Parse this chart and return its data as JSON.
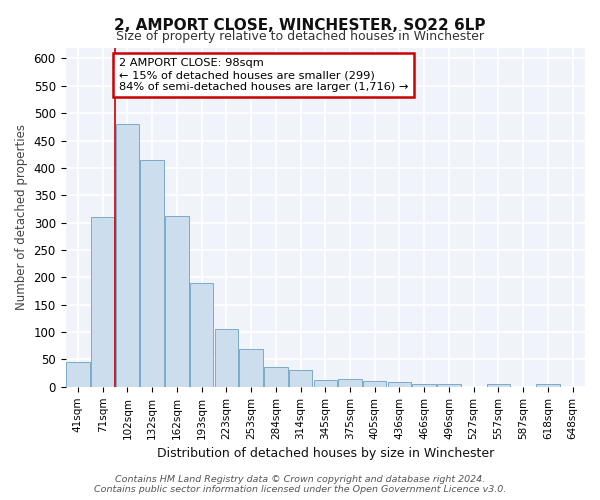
{
  "title": "2, AMPORT CLOSE, WINCHESTER, SO22 6LP",
  "subtitle": "Size of property relative to detached houses in Winchester",
  "xlabel": "Distribution of detached houses by size in Winchester",
  "ylabel": "Number of detached properties",
  "bar_color": "#ccdded",
  "bar_edge_color": "#7aaac8",
  "plot_bg_color": "#f0f4fa",
  "fig_bg_color": "#ffffff",
  "grid_color": "#ffffff",
  "categories": [
    "41sqm",
    "71sqm",
    "102sqm",
    "132sqm",
    "162sqm",
    "193sqm",
    "223sqm",
    "253sqm",
    "284sqm",
    "314sqm",
    "345sqm",
    "375sqm",
    "405sqm",
    "436sqm",
    "466sqm",
    "496sqm",
    "527sqm",
    "557sqm",
    "587sqm",
    "618sqm",
    "648sqm"
  ],
  "values": [
    46,
    310,
    480,
    415,
    313,
    190,
    105,
    70,
    37,
    30,
    13,
    15,
    10,
    8,
    5,
    5,
    0,
    5,
    0,
    5
  ],
  "ylim": [
    0,
    620
  ],
  "yticks": [
    0,
    50,
    100,
    150,
    200,
    250,
    300,
    350,
    400,
    450,
    500,
    550,
    600
  ],
  "red_line_index": 2,
  "annotation_text": "2 AMPORT CLOSE: 98sqm\n← 15% of detached houses are smaller (299)\n84% of semi-detached houses are larger (1,716) →",
  "annotation_box_color": "#ffffff",
  "annotation_box_edge": "#cc0000",
  "footnote": "Contains HM Land Registry data © Crown copyright and database right 2024.\nContains public sector information licensed under the Open Government Licence v3.0."
}
